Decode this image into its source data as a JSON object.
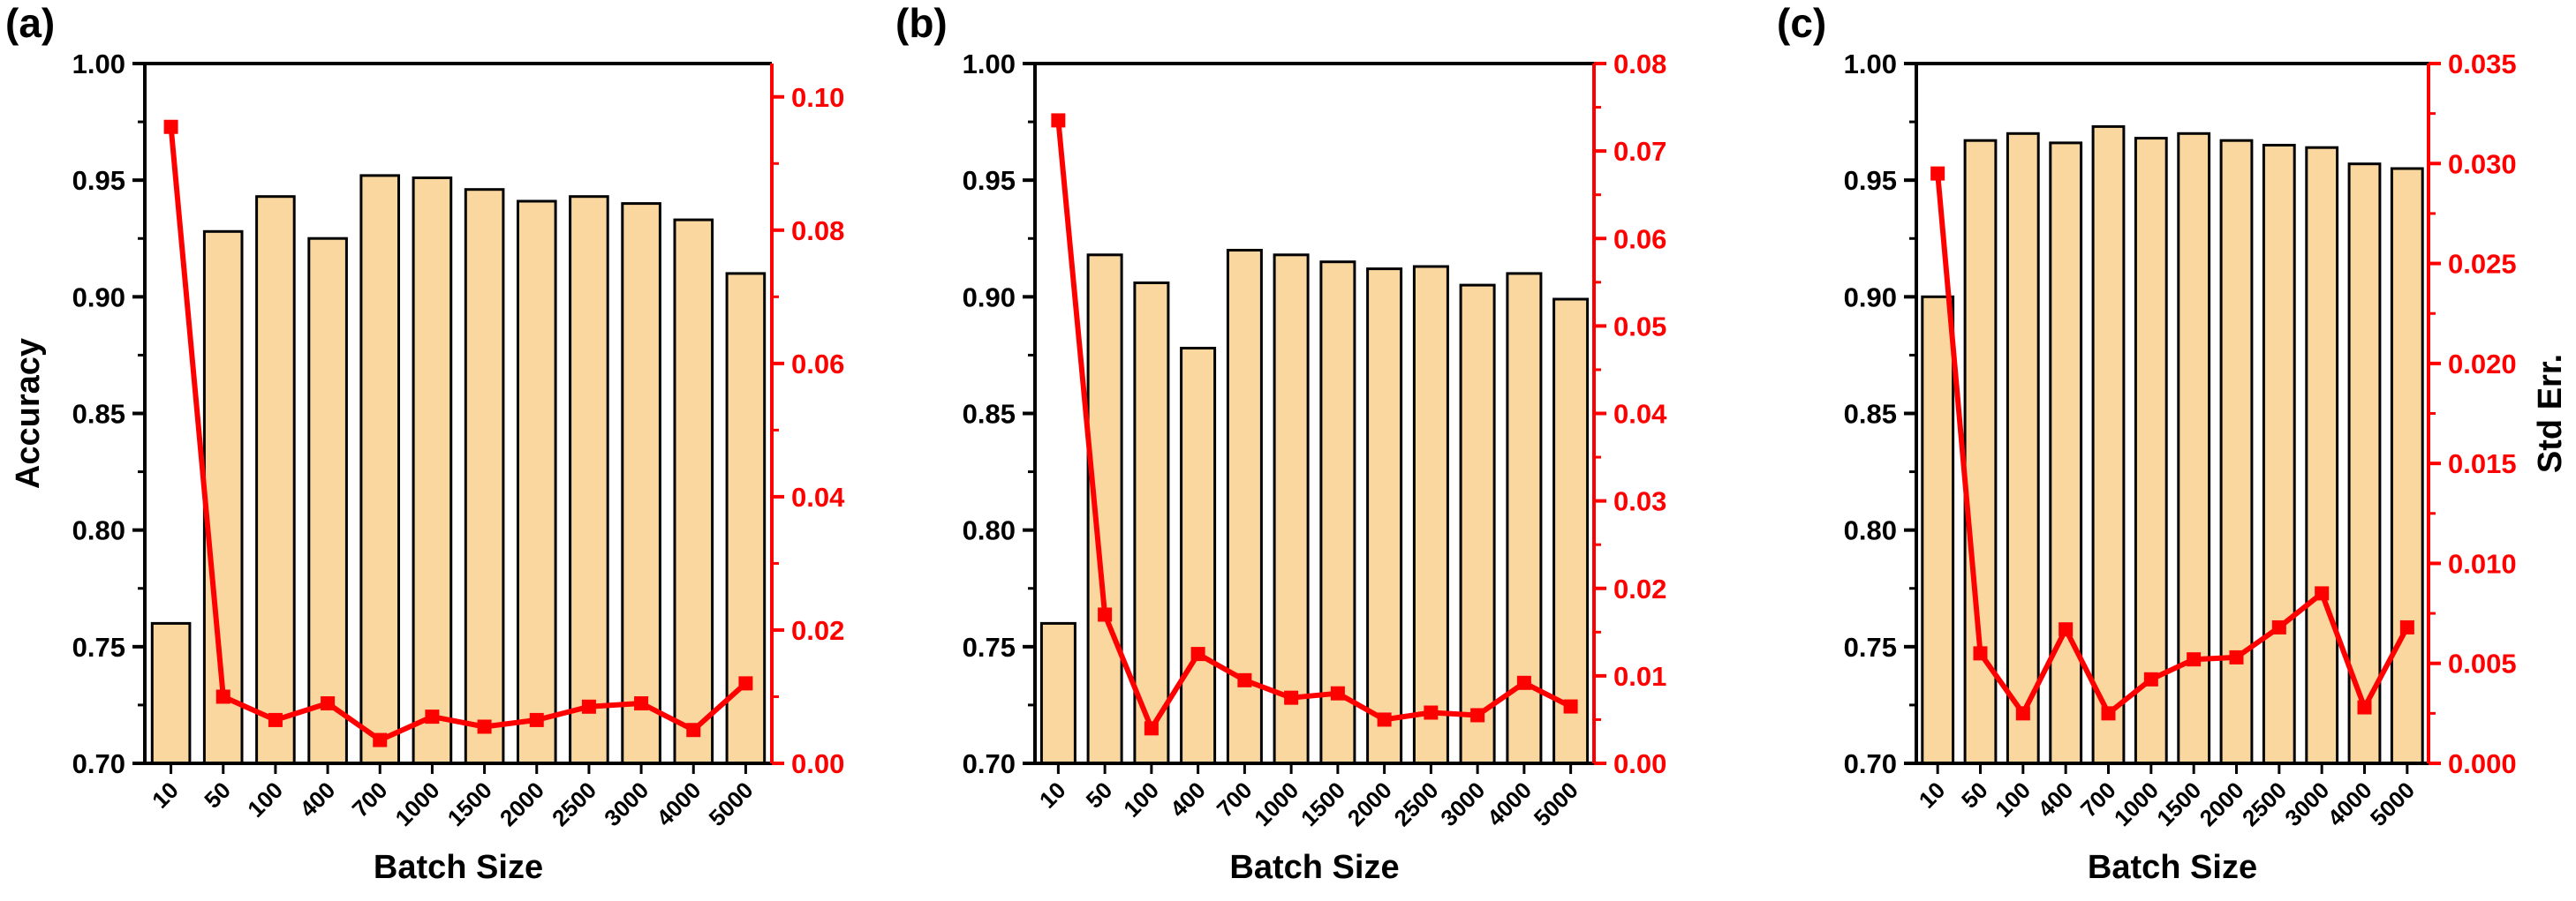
{
  "colors": {
    "bar_fill": "#FBD7A0",
    "bar_stroke": "#000000",
    "line": "#FF0000",
    "axis_left": "#000000",
    "axis_right": "#FF0000"
  },
  "chart_data": [
    {
      "type": "bar",
      "panel_label": "(a)",
      "categories": [
        "10",
        "50",
        "100",
        "400",
        "700",
        "1000",
        "1500",
        "2000",
        "2500",
        "3000",
        "4000",
        "5000"
      ],
      "xlabel": "Batch Size",
      "ylabel": "Accuracy",
      "ylim": [
        0.7,
        1.0
      ],
      "yticks": [
        "0.70",
        "0.75",
        "0.80",
        "0.85",
        "0.90",
        "0.95",
        "1.00"
      ],
      "series": [
        {
          "name": "Accuracy",
          "type": "bar",
          "axis": "left",
          "values": [
            0.76,
            0.928,
            0.943,
            0.925,
            0.952,
            0.951,
            0.946,
            0.941,
            0.943,
            0.94,
            0.933,
            0.91
          ]
        },
        {
          "name": "Std Err.",
          "type": "line",
          "axis": "right",
          "values": [
            0.0955,
            0.01,
            0.0065,
            0.009,
            0.0035,
            0.007,
            0.0055,
            0.0065,
            0.0085,
            0.009,
            0.005,
            0.012
          ]
        }
      ],
      "y2label": "",
      "y2lim": [
        0.0,
        0.105
      ],
      "y2ticks": [
        "0.00",
        "0.02",
        "0.04",
        "0.06",
        "0.08",
        "0.10"
      ]
    },
    {
      "type": "bar",
      "panel_label": "(b)",
      "categories": [
        "10",
        "50",
        "100",
        "400",
        "700",
        "1000",
        "1500",
        "2000",
        "2500",
        "3000",
        "4000",
        "5000"
      ],
      "xlabel": "Batch Size",
      "ylabel": "",
      "ylim": [
        0.7,
        1.0
      ],
      "yticks": [
        "0.70",
        "0.75",
        "0.80",
        "0.85",
        "0.90",
        "0.95",
        "1.00"
      ],
      "series": [
        {
          "name": "Accuracy",
          "type": "bar",
          "axis": "left",
          "values": [
            0.76,
            0.918,
            0.906,
            0.878,
            0.92,
            0.918,
            0.915,
            0.912,
            0.913,
            0.905,
            0.91,
            0.899
          ]
        },
        {
          "name": "Std Err.",
          "type": "line",
          "axis": "right",
          "values": [
            0.0735,
            0.017,
            0.004,
            0.0125,
            0.0095,
            0.0075,
            0.008,
            0.005,
            0.0058,
            0.0055,
            0.0092,
            0.0065
          ]
        }
      ],
      "y2label": "",
      "y2lim": [
        0.0,
        0.08
      ],
      "y2ticks": [
        "0.00",
        "0.01",
        "0.02",
        "0.03",
        "0.04",
        "0.05",
        "0.06",
        "0.07",
        "0.08"
      ]
    },
    {
      "type": "bar",
      "panel_label": "(c)",
      "categories": [
        "10",
        "50",
        "100",
        "400",
        "700",
        "1000",
        "1500",
        "2000",
        "2500",
        "3000",
        "4000",
        "5000"
      ],
      "xlabel": "Batch Size",
      "ylabel": "",
      "ylim": [
        0.7,
        1.0
      ],
      "yticks": [
        "0.70",
        "0.75",
        "0.80",
        "0.85",
        "0.90",
        "0.95",
        "1.00"
      ],
      "series": [
        {
          "name": "Accuracy",
          "type": "bar",
          "axis": "left",
          "values": [
            0.9,
            0.967,
            0.97,
            0.966,
            0.973,
            0.968,
            0.97,
            0.967,
            0.965,
            0.964,
            0.957,
            0.955
          ]
        },
        {
          "name": "Std Err.",
          "type": "line",
          "axis": "right",
          "values": [
            0.0295,
            0.0055,
            0.0025,
            0.0067,
            0.0025,
            0.0042,
            0.0052,
            0.0053,
            0.0068,
            0.0085,
            0.0028,
            0.0068
          ]
        }
      ],
      "y2label": "Std Err.",
      "y2lim": [
        0.0,
        0.035
      ],
      "y2ticks": [
        "0.000",
        "0.005",
        "0.010",
        "0.015",
        "0.020",
        "0.025",
        "0.030",
        "0.035"
      ]
    }
  ]
}
